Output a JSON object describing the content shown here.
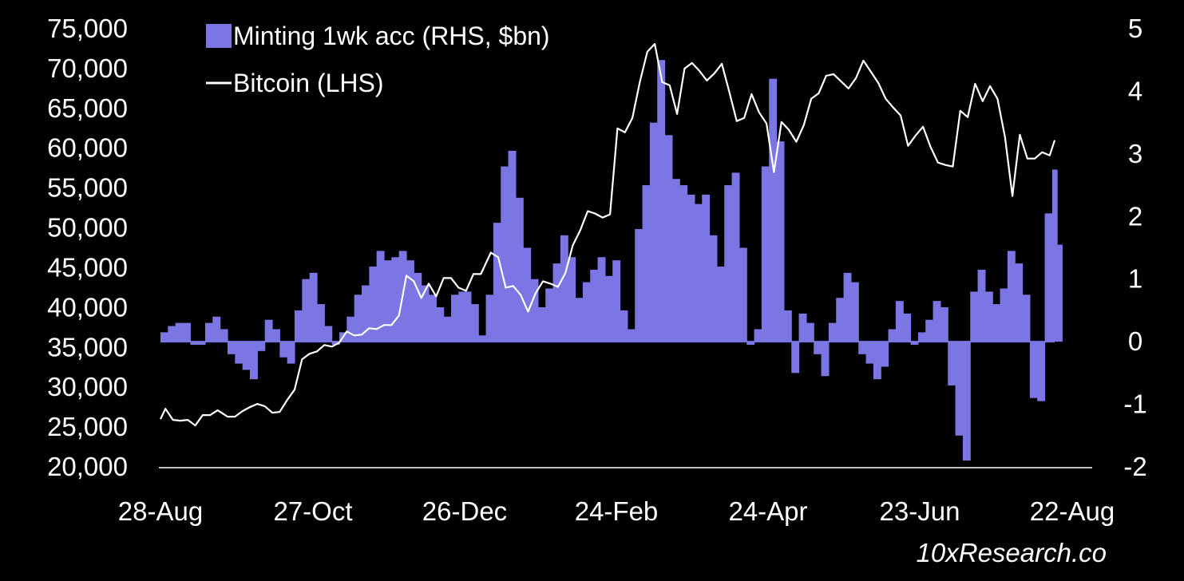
{
  "colors": {
    "background": "#000000",
    "bars": "#7b76e4",
    "line": "#ffffff",
    "text": "#ffffff"
  },
  "source": "10xResearch.co",
  "chart_data": {
    "type": "bar+line",
    "title": "",
    "legend": {
      "placement": "top-left",
      "entries": [
        {
          "label": "Minting 1wk acc (RHS, $bn)",
          "marker": "square",
          "color": "#7b76e4"
        },
        {
          "label": "Bitcoin (LHS)",
          "marker": "line",
          "color": "#ffffff"
        }
      ]
    },
    "grid": false,
    "x_axis": {
      "ticks": [
        "28-Aug",
        "27-Oct",
        "26-Dec",
        "24-Feb",
        "24-Apr",
        "23-Jun",
        "22-Aug"
      ],
      "start": "2023-08-28",
      "end": "2024-08-22"
    },
    "y_left": {
      "label": "",
      "range": [
        20000,
        75000
      ],
      "ticks": [
        20000,
        25000,
        30000,
        35000,
        40000,
        45000,
        50000,
        55000,
        60000,
        65000,
        70000,
        75000
      ],
      "tick_labels": [
        "20,000",
        "25,000",
        "30,000",
        "35,000",
        "40,000",
        "45,000",
        "50,000",
        "55,000",
        "60,000",
        "65,000",
        "70,000",
        "75,000"
      ]
    },
    "y_right": {
      "label": "",
      "range": [
        -2,
        5
      ],
      "ticks": [
        -2,
        -1,
        0,
        1,
        2,
        3,
        4,
        5
      ],
      "tick_labels": [
        "-2",
        "-1",
        "0",
        "1",
        "2",
        "3",
        "4",
        "5"
      ]
    },
    "series": [
      {
        "name": "Minting 1wk acc (RHS, $bn)",
        "type": "bar",
        "axis": "right",
        "points": [
          [
            "2023-08-28",
            0.15
          ],
          [
            "2023-08-31",
            0.25
          ],
          [
            "2023-09-03",
            0.3
          ],
          [
            "2023-09-06",
            0.3
          ],
          [
            "2023-09-09",
            -0.05
          ],
          [
            "2023-09-12",
            -0.05
          ],
          [
            "2023-09-15",
            0.3
          ],
          [
            "2023-09-18",
            0.4
          ],
          [
            "2023-09-21",
            0.2
          ],
          [
            "2023-09-24",
            -0.2
          ],
          [
            "2023-09-27",
            -0.35
          ],
          [
            "2023-09-30",
            -0.45
          ],
          [
            "2023-10-03",
            -0.6
          ],
          [
            "2023-10-06",
            -0.15
          ],
          [
            "2023-10-09",
            0.35
          ],
          [
            "2023-10-12",
            0.2
          ],
          [
            "2023-10-15",
            -0.25
          ],
          [
            "2023-10-18",
            -0.35
          ],
          [
            "2023-10-21",
            0.5
          ],
          [
            "2023-10-24",
            1.0
          ],
          [
            "2023-10-27",
            1.1
          ],
          [
            "2023-10-30",
            0.6
          ],
          [
            "2023-11-02",
            0.25
          ],
          [
            "2023-11-05",
            -0.05
          ],
          [
            "2023-11-08",
            0.15
          ],
          [
            "2023-11-11",
            0.4
          ],
          [
            "2023-11-14",
            0.75
          ],
          [
            "2023-11-17",
            0.9
          ],
          [
            "2023-11-20",
            1.2
          ],
          [
            "2023-11-23",
            1.45
          ],
          [
            "2023-11-26",
            1.3
          ],
          [
            "2023-11-29",
            1.35
          ],
          [
            "2023-12-02",
            1.45
          ],
          [
            "2023-12-05",
            1.3
          ],
          [
            "2023-12-08",
            1.1
          ],
          [
            "2023-12-11",
            0.9
          ],
          [
            "2023-12-14",
            0.75
          ],
          [
            "2023-12-17",
            0.55
          ],
          [
            "2023-12-20",
            0.4
          ],
          [
            "2023-12-23",
            0.75
          ],
          [
            "2023-12-26",
            0.8
          ],
          [
            "2023-12-29",
            0.8
          ],
          [
            "2023-12-31",
            0.6
          ],
          [
            "2024-01-03",
            0.1
          ],
          [
            "2024-01-06",
            0.75
          ],
          [
            "2024-01-09",
            1.9
          ],
          [
            "2024-01-12",
            2.8
          ],
          [
            "2024-01-15",
            3.05
          ],
          [
            "2024-01-18",
            2.3
          ],
          [
            "2024-01-21",
            1.5
          ],
          [
            "2024-01-24",
            1.0
          ],
          [
            "2024-01-27",
            0.55
          ],
          [
            "2024-01-30",
            0.85
          ],
          [
            "2024-02-02",
            1.25
          ],
          [
            "2024-02-05",
            1.7
          ],
          [
            "2024-02-08",
            1.35
          ],
          [
            "2024-02-11",
            0.7
          ],
          [
            "2024-02-14",
            0.95
          ],
          [
            "2024-02-17",
            1.15
          ],
          [
            "2024-02-20",
            1.35
          ],
          [
            "2024-02-23",
            1.05
          ],
          [
            "2024-02-26",
            1.3
          ],
          [
            "2024-02-29",
            0.5
          ],
          [
            "2024-03-03",
            0.2
          ],
          [
            "2024-03-06",
            1.8
          ],
          [
            "2024-03-09",
            2.5
          ],
          [
            "2024-03-12",
            3.5
          ],
          [
            "2024-03-15",
            4.5
          ],
          [
            "2024-03-18",
            3.3
          ],
          [
            "2024-03-21",
            2.6
          ],
          [
            "2024-03-24",
            2.5
          ],
          [
            "2024-03-27",
            2.35
          ],
          [
            "2024-03-30",
            2.2
          ],
          [
            "2024-04-02",
            2.35
          ],
          [
            "2024-04-05",
            1.7
          ],
          [
            "2024-04-08",
            1.2
          ],
          [
            "2024-04-11",
            2.5
          ],
          [
            "2024-04-14",
            2.7
          ],
          [
            "2024-04-17",
            1.5
          ],
          [
            "2024-04-20",
            -0.05
          ],
          [
            "2024-04-23",
            0.2
          ],
          [
            "2024-04-26",
            2.8
          ],
          [
            "2024-04-29",
            4.2
          ],
          [
            "2024-05-02",
            3.2
          ],
          [
            "2024-05-05",
            0.5
          ],
          [
            "2024-05-08",
            -0.5
          ],
          [
            "2024-05-11",
            0.45
          ],
          [
            "2024-05-14",
            0.3
          ],
          [
            "2024-05-17",
            -0.2
          ],
          [
            "2024-05-20",
            -0.55
          ],
          [
            "2024-05-23",
            0.3
          ],
          [
            "2024-05-26",
            0.7
          ],
          [
            "2024-05-29",
            1.1
          ],
          [
            "2024-06-01",
            0.95
          ],
          [
            "2024-06-04",
            -0.2
          ],
          [
            "2024-06-07",
            -0.35
          ],
          [
            "2024-06-10",
            -0.6
          ],
          [
            "2024-06-13",
            -0.4
          ],
          [
            "2024-06-16",
            0.2
          ],
          [
            "2024-06-19",
            0.65
          ],
          [
            "2024-06-22",
            0.45
          ],
          [
            "2024-06-25",
            -0.05
          ],
          [
            "2024-06-28",
            0.15
          ],
          [
            "2024-07-01",
            0.35
          ],
          [
            "2024-07-04",
            0.65
          ],
          [
            "2024-07-07",
            0.55
          ],
          [
            "2024-07-10",
            -0.7
          ],
          [
            "2024-07-13",
            -1.5
          ],
          [
            "2024-07-16",
            -1.9
          ],
          [
            "2024-07-19",
            0.8
          ],
          [
            "2024-07-22",
            1.15
          ],
          [
            "2024-07-25",
            0.8
          ],
          [
            "2024-07-28",
            0.6
          ],
          [
            "2024-07-31",
            0.85
          ],
          [
            "2024-08-03",
            1.45
          ],
          [
            "2024-08-06",
            1.25
          ],
          [
            "2024-08-09",
            0.75
          ],
          [
            "2024-08-12",
            -0.9
          ],
          [
            "2024-08-15",
            -0.95
          ],
          [
            "2024-08-18",
            2.05
          ],
          [
            "2024-08-21",
            2.75
          ],
          [
            "2024-08-23",
            1.55
          ]
        ]
      },
      {
        "name": "Bitcoin (LHS)",
        "type": "line",
        "axis": "left",
        "points": [
          [
            "2023-08-28",
            26000
          ],
          [
            "2023-08-30",
            27300
          ],
          [
            "2023-09-02",
            25900
          ],
          [
            "2023-09-05",
            25800
          ],
          [
            "2023-09-08",
            25900
          ],
          [
            "2023-09-11",
            25200
          ],
          [
            "2023-09-14",
            26500
          ],
          [
            "2023-09-17",
            26500
          ],
          [
            "2023-09-20",
            27100
          ],
          [
            "2023-09-24",
            26300
          ],
          [
            "2023-09-27",
            26300
          ],
          [
            "2023-09-30",
            27000
          ],
          [
            "2023-10-03",
            27500
          ],
          [
            "2023-10-06",
            27900
          ],
          [
            "2023-10-09",
            27600
          ],
          [
            "2023-10-12",
            26800
          ],
          [
            "2023-10-15",
            26900
          ],
          [
            "2023-10-18",
            28400
          ],
          [
            "2023-10-21",
            29700
          ],
          [
            "2023-10-24",
            33500
          ],
          [
            "2023-10-27",
            34200
          ],
          [
            "2023-10-30",
            34500
          ],
          [
            "2023-11-02",
            35300
          ],
          [
            "2023-11-05",
            35100
          ],
          [
            "2023-11-08",
            35600
          ],
          [
            "2023-11-11",
            37000
          ],
          [
            "2023-11-14",
            36500
          ],
          [
            "2023-11-17",
            36600
          ],
          [
            "2023-11-20",
            37400
          ],
          [
            "2023-11-23",
            37300
          ],
          [
            "2023-11-26",
            37800
          ],
          [
            "2023-11-29",
            37800
          ],
          [
            "2023-12-02",
            39000
          ],
          [
            "2023-12-05",
            44000
          ],
          [
            "2023-12-08",
            43300
          ],
          [
            "2023-12-11",
            41200
          ],
          [
            "2023-12-14",
            43000
          ],
          [
            "2023-12-17",
            41400
          ],
          [
            "2023-12-20",
            43700
          ],
          [
            "2023-12-23",
            43700
          ],
          [
            "2023-12-26",
            42500
          ],
          [
            "2023-12-29",
            42100
          ],
          [
            "2024-01-01",
            44200
          ],
          [
            "2024-01-04",
            44200
          ],
          [
            "2024-01-08",
            46900
          ],
          [
            "2024-01-11",
            46300
          ],
          [
            "2024-01-14",
            42500
          ],
          [
            "2024-01-17",
            42700
          ],
          [
            "2024-01-20",
            41600
          ],
          [
            "2024-01-23",
            39500
          ],
          [
            "2024-01-26",
            41800
          ],
          [
            "2024-01-29",
            43300
          ],
          [
            "2024-02-01",
            43000
          ],
          [
            "2024-02-04",
            42600
          ],
          [
            "2024-02-07",
            44300
          ],
          [
            "2024-02-10",
            47800
          ],
          [
            "2024-02-13",
            49700
          ],
          [
            "2024-02-16",
            52100
          ],
          [
            "2024-02-19",
            51800
          ],
          [
            "2024-02-22",
            51300
          ],
          [
            "2024-02-25",
            51700
          ],
          [
            "2024-02-28",
            62500
          ],
          [
            "2024-03-02",
            62000
          ],
          [
            "2024-03-05",
            63800
          ],
          [
            "2024-03-08",
            68300
          ],
          [
            "2024-03-11",
            72100
          ],
          [
            "2024-03-14",
            73100
          ],
          [
            "2024-03-17",
            68300
          ],
          [
            "2024-03-20",
            67900
          ],
          [
            "2024-03-23",
            64300
          ],
          [
            "2024-03-26",
            70000
          ],
          [
            "2024-03-29",
            70700
          ],
          [
            "2024-04-01",
            69700
          ],
          [
            "2024-04-04",
            68500
          ],
          [
            "2024-04-07",
            69400
          ],
          [
            "2024-04-10",
            70600
          ],
          [
            "2024-04-13",
            67100
          ],
          [
            "2024-04-16",
            63400
          ],
          [
            "2024-04-19",
            63800
          ],
          [
            "2024-04-22",
            66800
          ],
          [
            "2024-04-25",
            64500
          ],
          [
            "2024-04-28",
            63100
          ],
          [
            "2024-05-01",
            57000
          ],
          [
            "2024-05-04",
            63300
          ],
          [
            "2024-05-07",
            62300
          ],
          [
            "2024-05-10",
            60800
          ],
          [
            "2024-05-13",
            62900
          ],
          [
            "2024-05-16",
            66200
          ],
          [
            "2024-05-19",
            66900
          ],
          [
            "2024-05-22",
            69100
          ],
          [
            "2024-05-25",
            69300
          ],
          [
            "2024-05-28",
            68400
          ],
          [
            "2024-05-31",
            67500
          ],
          [
            "2024-06-03",
            68800
          ],
          [
            "2024-06-06",
            71000
          ],
          [
            "2024-06-09",
            69600
          ],
          [
            "2024-06-12",
            68200
          ],
          [
            "2024-06-15",
            66200
          ],
          [
            "2024-06-18",
            65100
          ],
          [
            "2024-06-21",
            64100
          ],
          [
            "2024-06-24",
            60300
          ],
          [
            "2024-06-27",
            61600
          ],
          [
            "2024-06-30",
            62700
          ],
          [
            "2024-07-03",
            60200
          ],
          [
            "2024-07-06",
            58200
          ],
          [
            "2024-07-09",
            57900
          ],
          [
            "2024-07-12",
            57700
          ],
          [
            "2024-07-15",
            64700
          ],
          [
            "2024-07-18",
            63900
          ],
          [
            "2024-07-21",
            68100
          ],
          [
            "2024-07-24",
            65900
          ],
          [
            "2024-07-27",
            67800
          ],
          [
            "2024-07-30",
            66200
          ],
          [
            "2024-08-02",
            61400
          ],
          [
            "2024-08-05",
            54000
          ],
          [
            "2024-08-08",
            61700
          ],
          [
            "2024-08-11",
            58700
          ],
          [
            "2024-08-14",
            58700
          ],
          [
            "2024-08-17",
            59500
          ],
          [
            "2024-08-20",
            59100
          ],
          [
            "2024-08-22",
            61000
          ]
        ]
      }
    ]
  }
}
